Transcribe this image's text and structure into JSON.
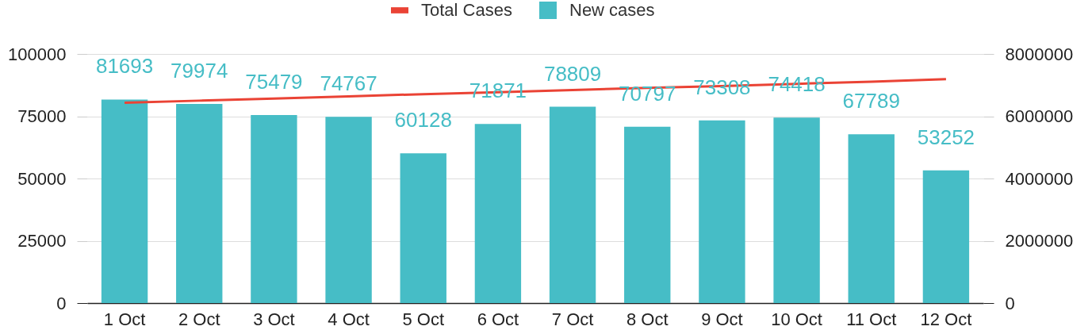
{
  "chart_data": {
    "type": "bar",
    "categories": [
      "1 Oct",
      "2 Oct",
      "3 Oct",
      "4 Oct",
      "5 Oct",
      "6 Oct",
      "7 Oct",
      "8 Oct",
      "9 Oct",
      "10 Oct",
      "11 Oct",
      "12 Oct"
    ],
    "series": [
      {
        "name": "Total Cases",
        "type": "line",
        "axis": "y2",
        "color": "#ea4335",
        "values": [
          6430000,
          6500000,
          6570000,
          6640000,
          6710000,
          6770000,
          6840000,
          6910000,
          6970000,
          7040000,
          7110000,
          7190000
        ]
      },
      {
        "name": "New cases",
        "color": "#46bdc6",
        "values": [
          81693,
          79974,
          75479,
          74767,
          60128,
          71871,
          78809,
          70797,
          73308,
          74418,
          67789,
          53252
        ],
        "value_labels": [
          "81693",
          "79974",
          "75479",
          "74767",
          "60128",
          "71871",
          "78809",
          "70797",
          "73308",
          "74418",
          "67789",
          "53252"
        ]
      }
    ],
    "ylim": [
      0,
      100000
    ],
    "yticks": [
      0,
      25000,
      50000,
      75000,
      100000
    ],
    "y2lim": [
      0,
      8000000
    ],
    "y2ticks": [
      0,
      2000000,
      4000000,
      6000000,
      8000000
    ],
    "grid": "y",
    "legend": "top"
  }
}
